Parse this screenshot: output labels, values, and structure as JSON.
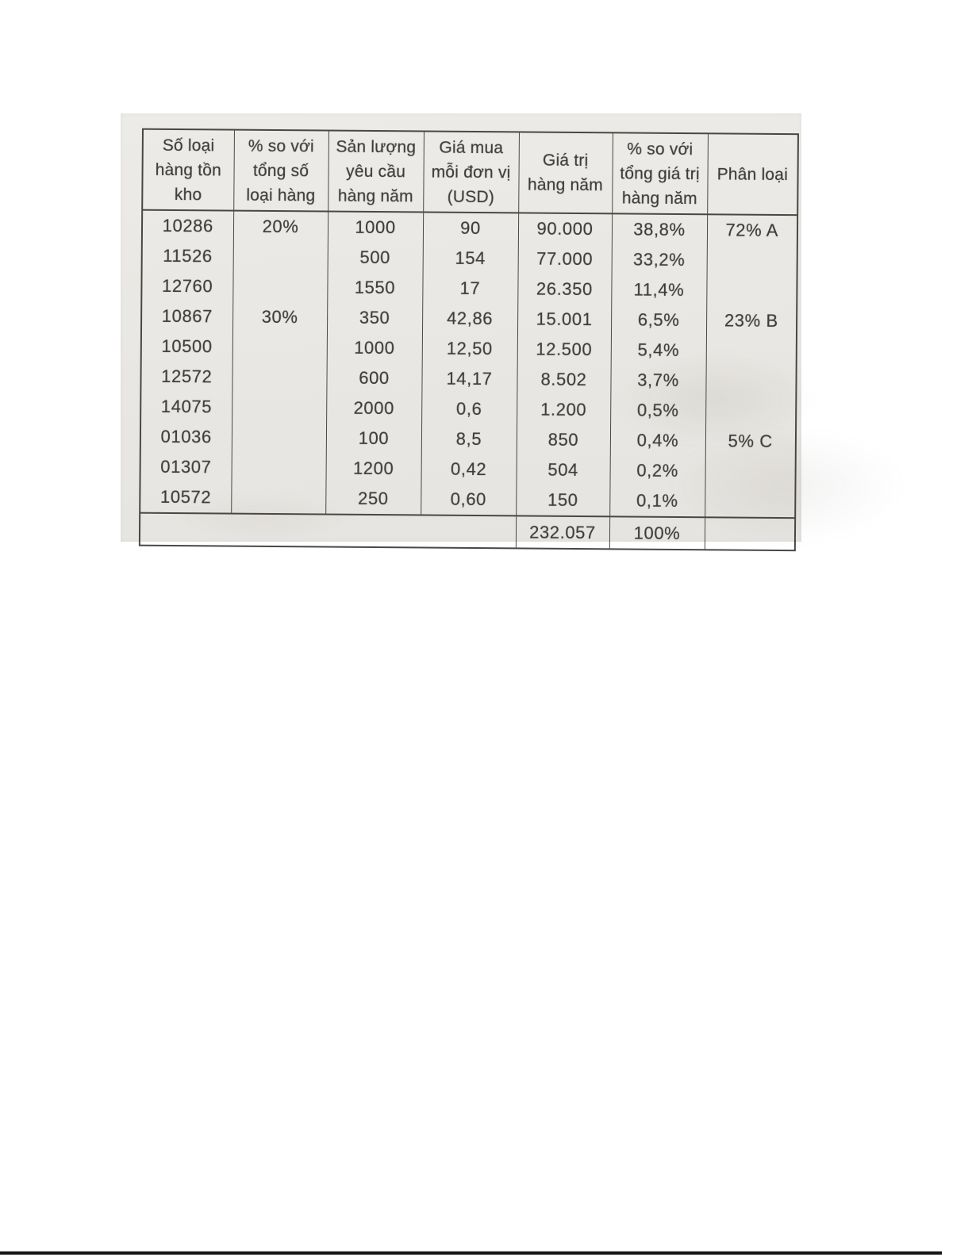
{
  "page": {
    "background": "#ffffff",
    "scan_background": "#eae8e4",
    "ink_color": "#3e3c39",
    "line_color": "#4a4743",
    "bottom_rule_color": "#141414"
  },
  "table": {
    "headers": [
      "Số loại\nhàng tồn\nkho",
      "% so với\ntổng số\nloại hàng",
      "Sản lượng\nyêu cầu\nhàng năm",
      "Giá mua\nmỗi đơn vị\n(USD)",
      "Giá trị\nhàng năm",
      "% so với\ntổng giá trị\nhàng năm",
      "Phân loại"
    ],
    "rows": [
      {
        "cells": [
          "10286",
          "20%",
          "1000",
          "90",
          "90.000",
          "38,8%",
          "72% A"
        ]
      },
      {
        "cells": [
          "11526",
          "",
          "500",
          "154",
          "77.000",
          "33,2%",
          ""
        ]
      },
      {
        "cells": [
          "12760",
          "",
          "1550",
          "17",
          "26.350",
          "11,4%",
          ""
        ]
      },
      {
        "cells": [
          "10867",
          "30%",
          "350",
          "42,86",
          "15.001",
          "6,5%",
          "23% B"
        ]
      },
      {
        "cells": [
          "10500",
          "",
          "1000",
          "12,50",
          "12.500",
          "5,4%",
          ""
        ]
      },
      {
        "cells": [
          "12572",
          "",
          "600",
          "14,17",
          "8.502",
          "3,7%",
          ""
        ]
      },
      {
        "cells": [
          "14075",
          "",
          "2000",
          "0,6",
          "1.200",
          "0,5%",
          ""
        ]
      },
      {
        "cells": [
          "01036",
          "",
          "100",
          "8,5",
          "850",
          "0,4%",
          "5% C"
        ]
      },
      {
        "cells": [
          "01307",
          "",
          "1200",
          "0,42",
          "504",
          "0,2%",
          ""
        ]
      },
      {
        "cells": [
          "10572",
          "",
          "250",
          "0,60",
          "150",
          "0,1%",
          ""
        ]
      }
    ],
    "total": {
      "value": "232.057",
      "percent": "100%",
      "classification": ""
    }
  }
}
